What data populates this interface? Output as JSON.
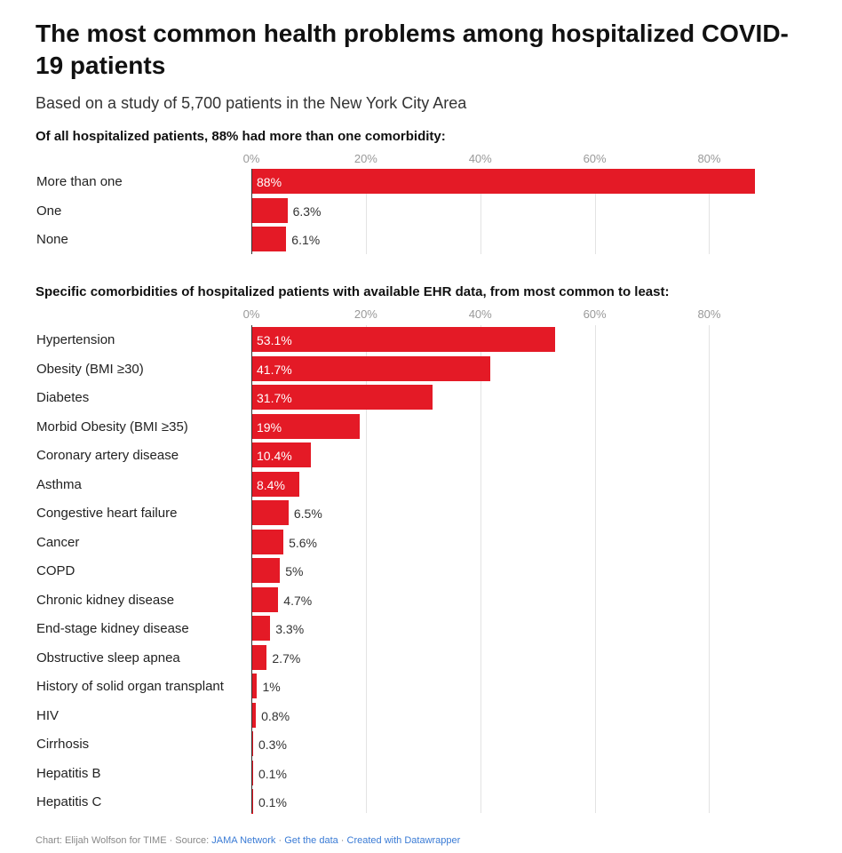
{
  "title": "The most common health problems among hospitalized COVID-19 patients",
  "subtitle": "Based on a study of 5,700 patients in the New York City Area",
  "footer": {
    "credit": "Chart: Elijah Wolfson for TIME · Source: ",
    "source": "JAMA Network",
    "get_data": "Get the data",
    "created": "Created with Datawrapper"
  },
  "colors": {
    "bar": "#e41a26"
  },
  "chart_data": [
    {
      "type": "bar",
      "orientation": "horizontal",
      "title": "Of all hospitalized patients, 88% had more than one comorbidity:",
      "categories": [
        "More than one",
        "One",
        "None"
      ],
      "values": [
        88,
        6.3,
        6.1
      ],
      "value_labels": [
        "88%",
        "6.3%",
        "6.1%"
      ],
      "xlim": [
        0,
        88
      ],
      "ticks": [
        "0%",
        "20%",
        "40%",
        "60%",
        "80%"
      ],
      "tick_values": [
        0,
        20,
        40,
        60,
        80
      ]
    },
    {
      "type": "bar",
      "orientation": "horizontal",
      "title": "Specific comorbidities of hospitalized patients with available EHR data, from most common to least:",
      "categories": [
        "Hypertension",
        "Obesity (BMI ≥30)",
        "Diabetes",
        "Morbid Obesity (BMI ≥35)",
        "Coronary artery disease",
        "Asthma",
        "Congestive heart failure",
        "Cancer",
        "COPD",
        "Chronic kidney disease",
        "End-stage kidney disease",
        "Obstructive sleep apnea",
        "History of solid organ transplant",
        "HIV",
        "Cirrhosis",
        "Hepatitis B",
        "Hepatitis C"
      ],
      "values": [
        53.1,
        41.7,
        31.7,
        19,
        10.4,
        8.4,
        6.5,
        5.6,
        5,
        4.7,
        3.3,
        2.7,
        1,
        0.8,
        0.3,
        0.1,
        0.1
      ],
      "value_labels": [
        "53.1%",
        "41.7%",
        "31.7%",
        "19%",
        "10.4%",
        "8.4%",
        "6.5%",
        "5.6%",
        "5%",
        "4.7%",
        "3.3%",
        "2.7%",
        "1%",
        "0.8%",
        "0.3%",
        "0.1%",
        "0.1%"
      ],
      "xlim": [
        0,
        88
      ],
      "ticks": [
        "0%",
        "20%",
        "40%",
        "60%",
        "80%"
      ],
      "tick_values": [
        0,
        20,
        40,
        60,
        80
      ]
    }
  ]
}
